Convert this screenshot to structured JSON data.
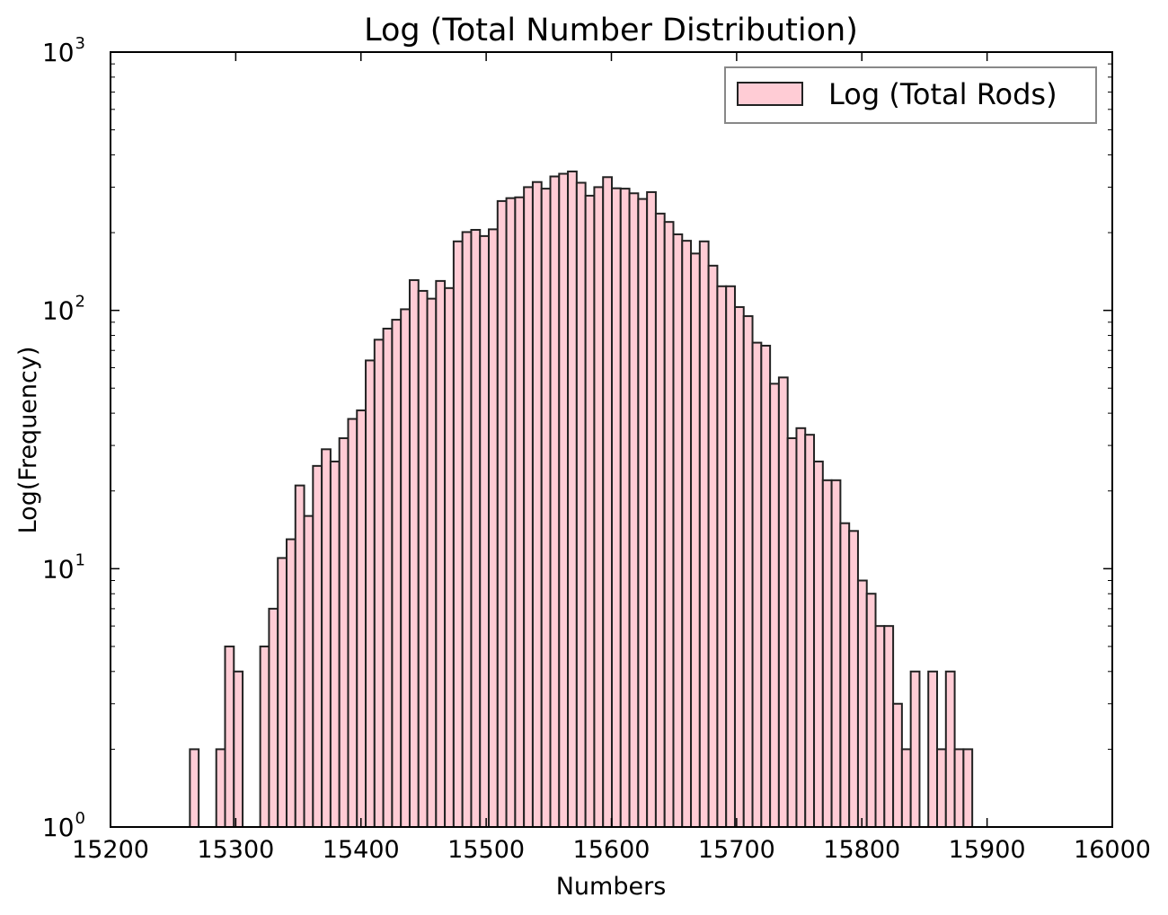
{
  "chart_data": {
    "type": "bar",
    "title": "Log (Total Number Distribution)",
    "xlabel": "Numbers",
    "ylabel": "Log(Frequency)",
    "xlim": [
      15200,
      16000
    ],
    "ylim": [
      1,
      1000
    ],
    "yscale": "log",
    "grid": false,
    "legend_position": "top-right",
    "x_ticks": [
      15200,
      15300,
      15400,
      15500,
      15600,
      15700,
      15800,
      15900,
      16000
    ],
    "y_ticks": [
      {
        "value": 1,
        "base": "10",
        "exp": "0"
      },
      {
        "value": 10,
        "base": "10",
        "exp": "1"
      },
      {
        "value": 100,
        "base": "10",
        "exp": "2"
      },
      {
        "value": 1000,
        "base": "10",
        "exp": "3"
      }
    ],
    "bar_color": "#ffccd5",
    "edge_color": "#222222",
    "bin_start": 15228.3,
    "bin_width": 7.02,
    "series": [
      {
        "name": "Log (Total Rods)",
        "values": [
          1,
          1,
          1,
          1,
          1,
          2,
          1,
          1,
          2,
          5,
          4,
          1,
          1,
          5,
          7,
          11,
          13,
          21,
          16,
          25,
          29,
          26,
          32,
          38,
          41,
          64,
          77,
          85,
          92,
          101,
          131,
          119,
          111,
          130,
          122,
          185,
          201,
          205,
          194,
          206,
          265,
          272,
          274,
          300,
          314,
          296,
          330,
          338,
          345,
          312,
          278,
          300,
          328,
          297,
          296,
          284,
          270,
          287,
          237,
          220,
          197,
          186,
          166,
          185,
          149,
          124,
          124,
          103,
          95,
          75,
          73,
          52,
          55,
          32,
          35,
          33,
          26,
          22,
          22,
          15,
          14,
          9,
          8,
          6,
          6,
          3,
          2,
          4,
          1,
          4,
          2,
          4,
          2,
          2,
          1,
          1,
          1,
          1,
          1
        ]
      }
    ]
  }
}
